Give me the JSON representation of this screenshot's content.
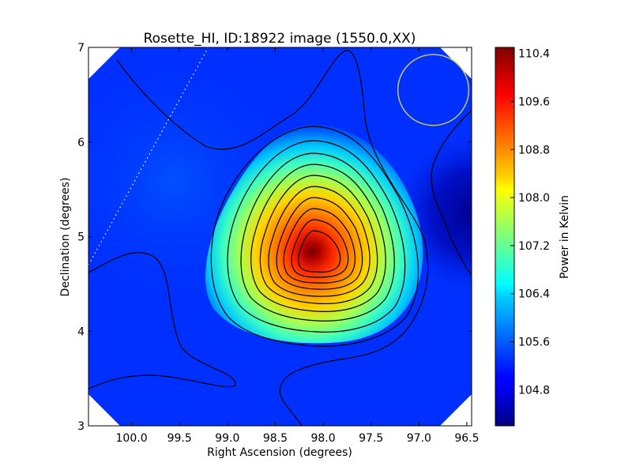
{
  "chart_data": {
    "type": "heatmap",
    "title": "Rosette_HI, ID:18922 image (1550.0,XX)",
    "xlabel": "Right Ascension (degrees)",
    "ylabel": "Declination (degrees)",
    "xlim": [
      100.45,
      96.45
    ],
    "ylim": [
      3,
      7
    ],
    "x_ticks": [
      100.0,
      99.5,
      99.0,
      98.5,
      98.0,
      97.5,
      97.0,
      96.5
    ],
    "x_tick_labels": [
      "100.0",
      "99.5",
      "99.0",
      "98.5",
      "98.0",
      "97.5",
      "97.0",
      "96.5"
    ],
    "y_ticks": [
      3,
      4,
      5,
      6,
      7
    ],
    "y_tick_labels": [
      "3",
      "4",
      "5",
      "6",
      "7"
    ],
    "colormap": "jet",
    "colorbar": {
      "label": "Power in Kelvin",
      "range": [
        104.2,
        110.5
      ],
      "ticks": [
        104.8,
        105.6,
        106.4,
        107.2,
        108.0,
        108.8,
        109.6,
        110.4
      ],
      "tick_labels": [
        "104.8",
        "105.6",
        "106.4",
        "107.2",
        "108.0",
        "108.8",
        "109.6",
        "110.4"
      ]
    },
    "peak": {
      "ra": 98.12,
      "dec": 4.83,
      "value": 110.4
    },
    "background_level": 105.0,
    "low_region": {
      "ra": 96.5,
      "dec": 5.2,
      "value": 104.5
    },
    "beam_circle": {
      "ra": 96.85,
      "dec": 6.55,
      "radius_deg": 0.37,
      "color": "#c8c850"
    },
    "dotted_line": {
      "from": [
        100.45,
        4.7
      ],
      "to": [
        99.2,
        7.0
      ],
      "color": "#ffffff"
    },
    "contour_color": "#000000",
    "map_edge": "octagonal beam-corrected footprint"
  }
}
